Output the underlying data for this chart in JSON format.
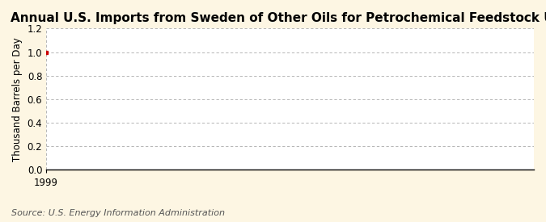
{
  "title": "Annual U.S. Imports from Sweden of Other Oils for Petrochemical Feedstock Use",
  "ylabel": "Thousand Barrels per Day",
  "source": "Source: U.S. Energy Information Administration",
  "x_data": [
    1999
  ],
  "y_data": [
    1.0
  ],
  "point_color": "#cc0000",
  "ylim": [
    0.0,
    1.2
  ],
  "yticks": [
    0.0,
    0.2,
    0.4,
    0.6,
    0.8,
    1.0,
    1.2
  ],
  "xlim": [
    1999,
    2019
  ],
  "xticks": [
    1999
  ],
  "background_color": "#fdf6e3",
  "plot_bg_color": "#ffffff",
  "grid_color": "#aaaaaa",
  "title_fontsize": 11,
  "label_fontsize": 8.5,
  "tick_fontsize": 8.5,
  "source_fontsize": 8
}
